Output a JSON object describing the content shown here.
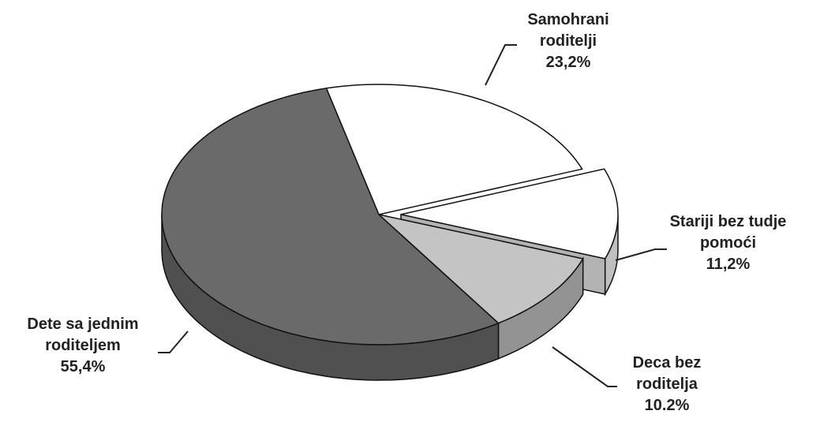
{
  "chart_data": {
    "type": "pie",
    "categories": [
      "Samohrani roditelji",
      "Stariji bez tudje pomoći",
      "Deca bez roditelja",
      "Dete sa jednim roditeljem"
    ],
    "values": [
      23.2,
      11.2,
      10.2,
      55.4
    ],
    "value_labels": [
      "23,2%",
      "11,2%",
      "10.2%",
      "55,4%"
    ],
    "colors": [
      "#ffffff",
      "#ffffff",
      "#c4c4c4",
      "#6a6a6a"
    ]
  }
}
